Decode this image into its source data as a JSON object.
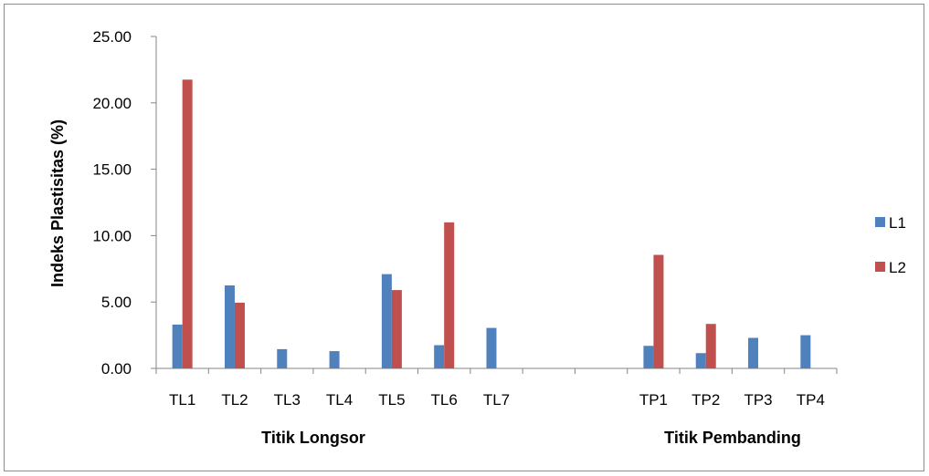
{
  "chart_data": {
    "type": "bar",
    "ylabel": "Indeks Plastisitas (%)",
    "ylim": [
      0,
      25
    ],
    "yticks": [
      "0.00",
      "5.00",
      "10.00",
      "15.00",
      "20.00",
      "25.00"
    ],
    "grid": false,
    "legend_position": "right",
    "categories": [
      "TL1",
      "TL2",
      "TL3",
      "TL4",
      "TL5",
      "TL6",
      "TL7",
      "",
      "",
      "TP1",
      "TP2",
      "TP3",
      "TP4"
    ],
    "groups": [
      {
        "label": "Titik Longsor"
      },
      {
        "label": "Titik Pembanding"
      }
    ],
    "series": [
      {
        "name": "L1",
        "color": "#4f81bd",
        "values": [
          3.3,
          6.25,
          1.45,
          1.3,
          7.1,
          1.75,
          3.05,
          null,
          null,
          1.7,
          1.15,
          2.3,
          2.5
        ]
      },
      {
        "name": "L2",
        "color": "#c0504d",
        "values": [
          21.75,
          4.95,
          null,
          null,
          5.9,
          11.0,
          null,
          null,
          null,
          8.55,
          3.35,
          null,
          null
        ]
      }
    ]
  }
}
